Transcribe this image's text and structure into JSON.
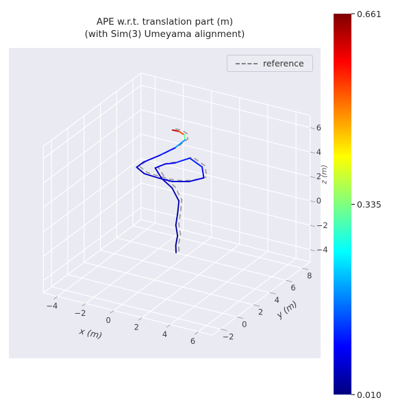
{
  "title": {
    "line1": "APE w.r.t. translation part (m)",
    "line2": "(with Sim(3) Umeyama alignment)"
  },
  "legend": {
    "reference_label": "reference"
  },
  "colorbar": {
    "vmin": 0.01,
    "vmax": 0.661,
    "tick_values": [
      0.661,
      0.335,
      0.01
    ],
    "tick_labels": [
      "0.661",
      "0.335",
      "0.010"
    ],
    "colormap": "jet"
  },
  "colors": {
    "axes_background": "#eaeaf2",
    "grid_line": "#ffffff",
    "reference_line": "#8a8a8a",
    "tick_mark": "#a3a3b5",
    "tick_text": "#3c3c43",
    "title_text": "#262626"
  },
  "chart_data": {
    "type": "line3d",
    "title": "APE w.r.t. translation part (m) (with Sim(3) Umeyama alignment)",
    "xlabel": "x (m)",
    "ylabel": "y (m)",
    "zlabel": "z (m)",
    "xlim": [
      -5,
      7
    ],
    "ylim": [
      -3,
      9
    ],
    "zlim": [
      -5,
      7
    ],
    "xticks": [
      -4,
      -2,
      0,
      2,
      4,
      6
    ],
    "yticks": [
      -2,
      0,
      2,
      4,
      6,
      8
    ],
    "zticks": [
      -4,
      -2,
      0,
      2,
      4,
      6
    ],
    "view": {
      "elev": 30,
      "azim": -60
    },
    "grid": true,
    "legend_position": "upper right",
    "error_range": {
      "min": 0.01,
      "max": 0.661
    },
    "series": [
      {
        "name": "reference",
        "style": "dashed",
        "color": "#8a8a8a",
        "points": [
          [
            0.3,
            4.05,
            6.43
          ],
          [
            0.7,
            4.15,
            6.38
          ],
          [
            1.05,
            4.2,
            6.18
          ],
          [
            1.15,
            4.1,
            5.83
          ],
          [
            0.7,
            3.65,
            5.28
          ],
          [
            -0.1,
            3.15,
            4.68
          ],
          [
            -1.0,
            2.75,
            4.08
          ],
          [
            -1.35,
            2.5,
            3.68
          ],
          [
            -0.75,
            2.4,
            3.38
          ],
          [
            0.15,
            2.6,
            3.18
          ],
          [
            0.95,
            2.9,
            2.98
          ],
          [
            1.85,
            3.4,
            2.98
          ],
          [
            2.55,
            4.0,
            3.18
          ],
          [
            2.2,
            4.4,
            3.78
          ],
          [
            1.35,
            4.35,
            4.28
          ],
          [
            0.65,
            3.75,
            3.98
          ],
          [
            0.15,
            3.4,
            3.93
          ],
          [
            -0.35,
            3.05,
            3.63
          ],
          [
            0.25,
            2.8,
            3.08
          ],
          [
            1.05,
            2.7,
            2.58
          ],
          [
            1.65,
            2.5,
            1.78
          ],
          [
            1.65,
            2.35,
            0.88
          ],
          [
            1.55,
            2.3,
            -0.12
          ],
          [
            1.7,
            2.25,
            -0.92
          ],
          [
            1.6,
            2.2,
            -1.72
          ],
          [
            1.65,
            2.15,
            -2.27
          ]
        ]
      },
      {
        "name": "estimate_colored_by_ape",
        "style": "solid_colormapped",
        "points": [
          [
            0.15,
            3.95,
            6.35,
            0.58
          ],
          [
            0.55,
            4.05,
            6.3,
            0.661
          ],
          [
            0.9,
            4.1,
            6.1,
            0.4
          ],
          [
            1.0,
            4.0,
            5.75,
            0.25
          ],
          [
            0.55,
            3.55,
            5.2,
            0.12
          ],
          [
            -0.25,
            3.05,
            4.6,
            0.09
          ],
          [
            -1.15,
            2.65,
            4.0,
            0.07
          ],
          [
            -1.5,
            2.4,
            3.6,
            0.05
          ],
          [
            -0.9,
            2.3,
            3.3,
            0.05
          ],
          [
            0.0,
            2.5,
            3.1,
            0.06
          ],
          [
            0.8,
            2.8,
            2.9,
            0.07
          ],
          [
            1.7,
            3.3,
            2.9,
            0.06
          ],
          [
            2.4,
            3.9,
            3.1,
            0.08
          ],
          [
            2.05,
            4.3,
            3.7,
            0.1
          ],
          [
            1.2,
            4.25,
            4.2,
            0.12
          ],
          [
            0.5,
            3.65,
            3.9,
            0.1
          ],
          [
            0.0,
            3.3,
            3.85,
            0.08
          ],
          [
            -0.5,
            2.95,
            3.55,
            0.06
          ],
          [
            0.1,
            2.7,
            3.0,
            0.05
          ],
          [
            0.9,
            2.6,
            2.5,
            0.05
          ],
          [
            1.5,
            2.4,
            1.7,
            0.04
          ],
          [
            1.5,
            2.25,
            0.8,
            0.035
          ],
          [
            1.4,
            2.2,
            -0.2,
            0.03
          ],
          [
            1.55,
            2.15,
            -1.0,
            0.025
          ],
          [
            1.45,
            2.1,
            -1.8,
            0.02
          ],
          [
            1.5,
            2.05,
            -2.35,
            0.015
          ]
        ]
      }
    ]
  }
}
